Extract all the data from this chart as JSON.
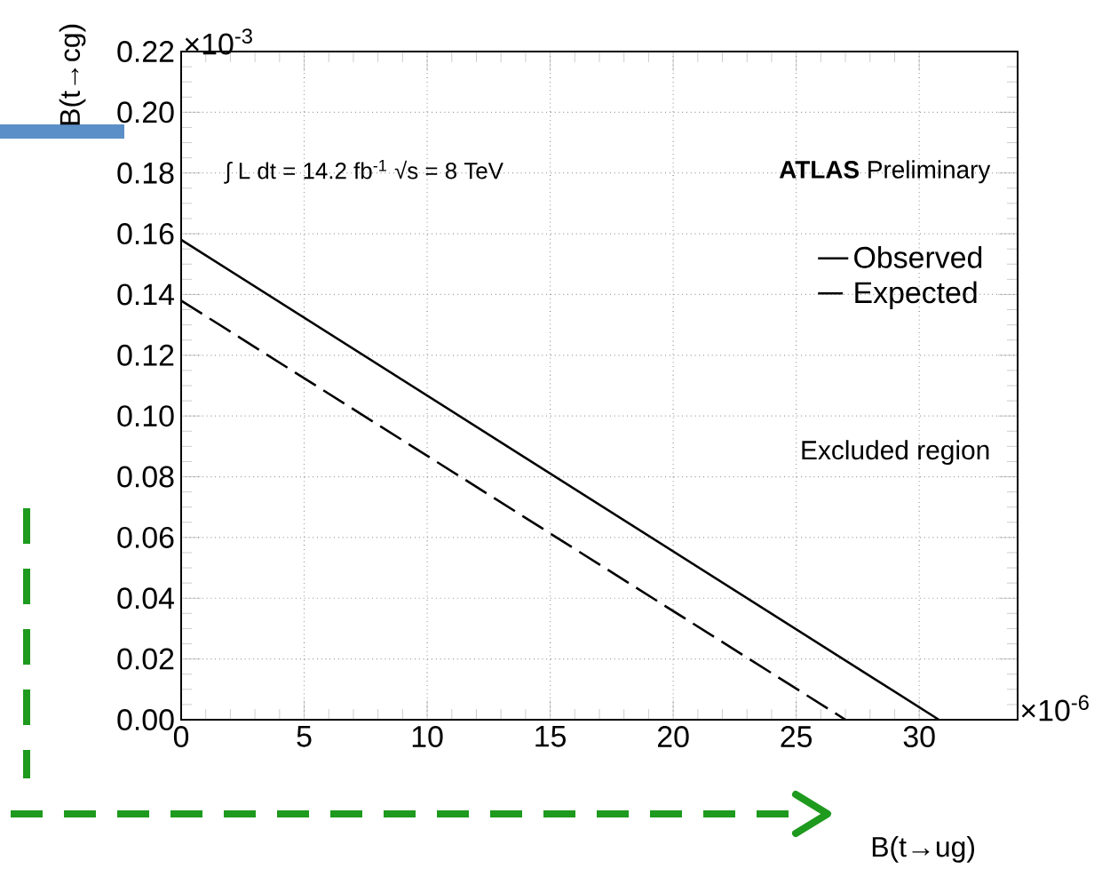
{
  "chart_data": {
    "type": "line",
    "xlabel": "B(t→ug)",
    "ylabel": "B(t→cg)",
    "annotations": [
      "∫ L dt = 14.2 fb$^{-1}$  √s = 8 TeV",
      "**ATLAS** Preliminary",
      "Excluded region",
      "×10$^{-3}$",
      "×10$^{-6}$"
    ],
    "series": [
      {
        "name": "Observed",
        "color": "#000000",
        "line_style": "solid",
        "x": [
          0,
          30.8
        ],
        "values": [
          0.158,
          0
        ]
      },
      {
        "name": "Expected",
        "color": "#000000",
        "line_style": "dashed",
        "x": [
          0,
          27
        ],
        "values": [
          0.138,
          0
        ]
      }
    ],
    "xlim": [
      0,
      34
    ],
    "ylim": [
      0,
      0.22
    ],
    "xticks": [
      0,
      5,
      10,
      15,
      20,
      25,
      30
    ],
    "yticks": [
      {
        "value": 0,
        "label": "0.00"
      },
      {
        "value": 0.02,
        "label": "0.02"
      },
      {
        "value": 0.04,
        "label": "0.04"
      },
      {
        "value": 0.06,
        "label": "0.06"
      },
      {
        "value": 0.08,
        "label": "0.08"
      },
      {
        "value": 0.1,
        "label": "0.10"
      },
      {
        "value": 0.12,
        "label": "0.12"
      },
      {
        "value": 0.14,
        "label": "0.14"
      },
      {
        "value": 0.16,
        "label": "0.16"
      },
      {
        "value": 0.18,
        "label": "0.18"
      },
      {
        "value": 0.2,
        "label": "0.20"
      },
      {
        "value": 0.22,
        "label": "0.22"
      }
    ],
    "grid": true,
    "legend": "top right",
    "marker": "none"
  }
}
